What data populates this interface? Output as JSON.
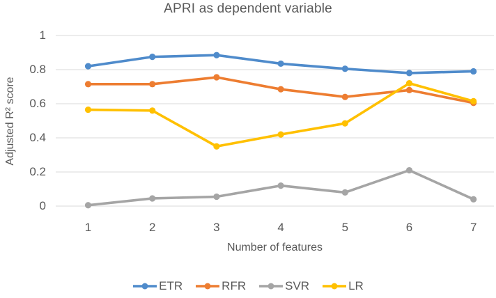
{
  "chart_data": {
    "type": "line",
    "title": "APRI as dependent variable",
    "xlabel": "Number of features",
    "ylabel": "Adjusted R² score",
    "categories": [
      "1",
      "2",
      "3",
      "4",
      "5",
      "6",
      "7"
    ],
    "series": [
      {
        "name": "ETR",
        "color": "#4F8BCB",
        "values": [
          0.82,
          0.875,
          0.885,
          0.835,
          0.805,
          0.78,
          0.79
        ]
      },
      {
        "name": "RFR",
        "color": "#ED7D31",
        "values": [
          0.715,
          0.715,
          0.755,
          0.685,
          0.64,
          0.68,
          0.605
        ]
      },
      {
        "name": "SVR",
        "color": "#A5A5A5",
        "values": [
          0.005,
          0.045,
          0.055,
          0.12,
          0.08,
          0.21,
          0.04
        ]
      },
      {
        "name": "LR",
        "color": "#FFC000",
        "values": [
          0.565,
          0.56,
          0.35,
          0.42,
          0.485,
          0.72,
          0.615
        ]
      }
    ],
    "ylim": [
      0,
      1
    ],
    "yticks": [
      "0",
      "0.2",
      "0.4",
      "0.6",
      "0.8",
      "1"
    ],
    "grid": true,
    "legend_position": "bottom"
  },
  "colors": {
    "text": "#595959",
    "gridline": "#D9D9D9",
    "background": "#FFFFFF"
  }
}
